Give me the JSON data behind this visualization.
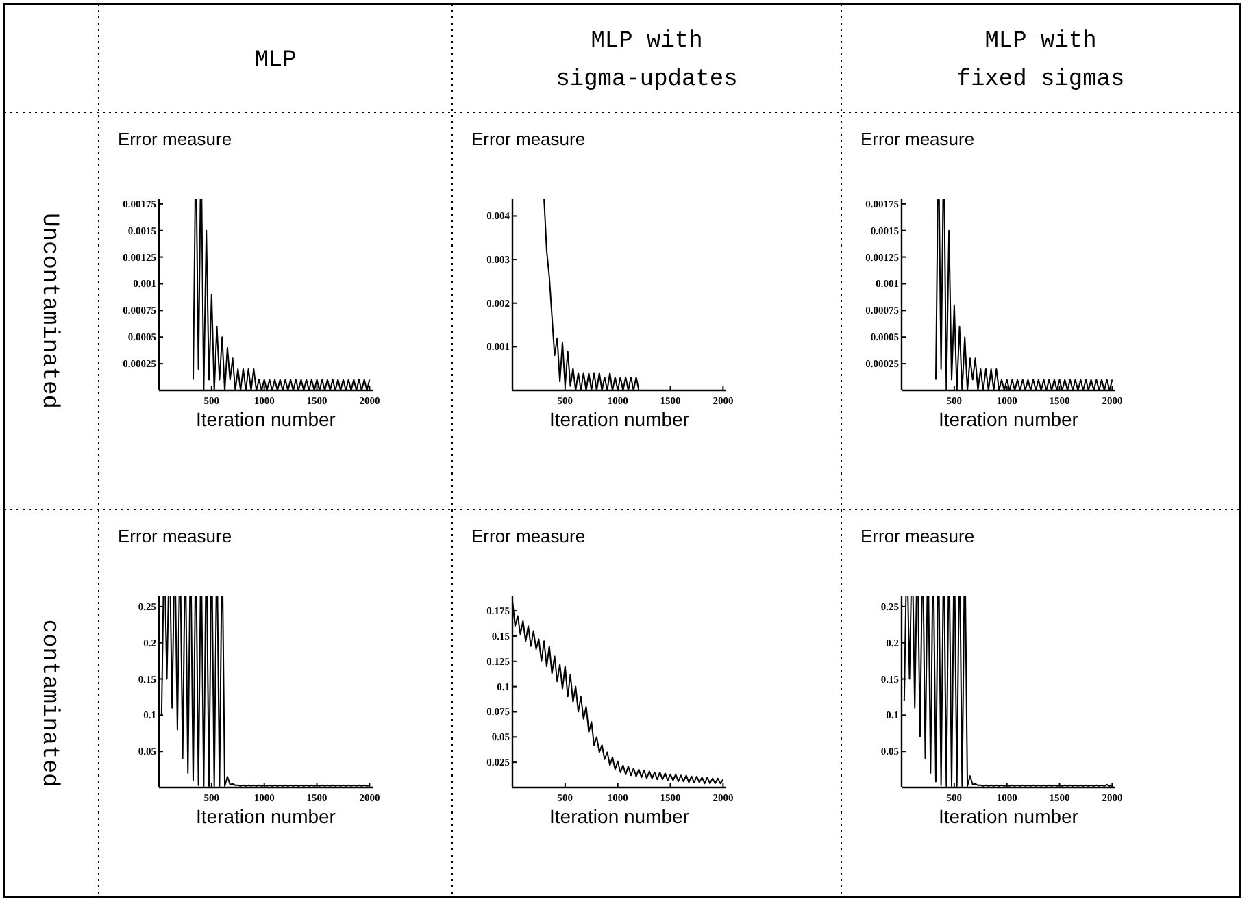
{
  "chart_data": [
    {
      "type": "line",
      "ylabel": "Error measure",
      "xlabel": "Iteration number",
      "xlim": [
        0,
        2030
      ],
      "ylim": [
        0,
        0.0018
      ],
      "xticks": [
        500,
        1000,
        1500,
        2000
      ],
      "yticks": [
        0.00025,
        0.0005,
        0.00075,
        0.001,
        0.00125,
        0.0015,
        0.00175
      ],
      "series": [
        {
          "color": "#000000",
          "x": [
            325,
            350,
            375,
            400,
            425,
            450,
            475,
            500,
            525,
            550,
            575,
            600,
            625,
            650,
            675,
            700,
            725,
            750,
            775,
            800,
            825,
            850,
            875,
            900,
            925,
            950,
            975,
            1000,
            1025,
            1050,
            1075,
            1100,
            1125,
            1150,
            1175,
            1200,
            1225,
            1250,
            1275,
            1300,
            1325,
            1350,
            1375,
            1400,
            1425,
            1450,
            1475,
            1500,
            1525,
            1550,
            1575,
            1600,
            1625,
            1650,
            1675,
            1700,
            1725,
            1750,
            1775,
            1800,
            1825,
            1850,
            1875,
            1900,
            1925,
            1950,
            1975,
            2000
          ],
          "values": [
            0.0001,
            null,
            0.0002,
            null,
            0,
            0.0015,
            0.0001,
            0.0009,
            0,
            0.0006,
            0.0001,
            0.0005,
            0,
            0.0004,
            0.0001,
            0.0003,
            0,
            0.0002,
            0,
            0.0002,
            0,
            0.0002,
            0,
            0.0002,
            0,
            0.0001,
            0,
            0.0001,
            0,
            0.0001,
            0,
            0.0001,
            0,
            0.0001,
            0,
            0.0001,
            0,
            0.0001,
            0,
            0.0001,
            0,
            0.0001,
            0,
            0.0001,
            0,
            0.0001,
            0,
            0.0001,
            0,
            0.0001,
            0,
            0.0001,
            0,
            0.0001,
            0,
            0.0001,
            0,
            0.0001,
            0,
            0.0001,
            0,
            0.0001,
            0,
            0.0001,
            0,
            0.0001,
            0,
            0.0001
          ]
        }
      ]
    },
    {
      "type": "line",
      "ylabel": "Error measure",
      "xlabel": "Iteration number",
      "xlim": [
        0,
        2030
      ],
      "ylim": [
        0,
        0.0044
      ],
      "xticks": [
        500,
        1000,
        1500,
        2000
      ],
      "yticks": [
        0.001,
        0.002,
        0.003,
        0.004
      ],
      "series": [
        {
          "color": "#000000",
          "x": [
            300,
            325,
            350,
            375,
            400,
            425,
            450,
            475,
            500,
            525,
            550,
            575,
            600,
            625,
            650,
            675,
            700,
            725,
            750,
            775,
            800,
            825,
            850,
            875,
            900,
            925,
            950,
            975,
            1000,
            1025,
            1050,
            1075,
            1100,
            1125,
            1150,
            1175,
            1200,
            1225,
            1250,
            1275,
            1300,
            1325,
            1350,
            1375,
            1400,
            1425,
            1450,
            1475,
            1500,
            1525,
            1550,
            1575,
            1600,
            1625,
            1650,
            1675,
            1700,
            1725,
            1750,
            1775,
            1800,
            1825,
            1850,
            1875,
            1900,
            1925,
            1950,
            1975,
            2000
          ],
          "values": [
            0.0044,
            0.0032,
            0.0026,
            0.0017,
            0.0008,
            0.0012,
            0.0002,
            0.0011,
            0.0001,
            0.0009,
            0.0001,
            0.0005,
            0,
            0.0004,
            0,
            0.0004,
            0,
            0.0004,
            0,
            0.0004,
            0,
            0.0004,
            0,
            0.0003,
            0,
            0.0004,
            0,
            0.0003,
            0,
            0.0003,
            0,
            0.0003,
            0,
            0.0003,
            0,
            0.0003,
            0,
            0,
            0,
            0,
            0,
            0,
            0,
            0,
            0,
            0,
            0,
            0,
            0,
            0,
            0,
            0,
            0,
            0,
            0,
            0,
            0,
            0,
            0,
            0,
            0,
            0,
            0,
            0,
            0,
            0,
            0,
            0,
            0
          ]
        }
      ]
    },
    {
      "type": "line",
      "ylabel": "Error measure",
      "xlabel": "Iteration number",
      "xlim": [
        0,
        2030
      ],
      "ylim": [
        0,
        0.0018
      ],
      "xticks": [
        500,
        1000,
        1500,
        2000
      ],
      "yticks": [
        0.00025,
        0.0005,
        0.00075,
        0.001,
        0.00125,
        0.0015,
        0.00175
      ],
      "series": [
        {
          "color": "#000000",
          "x": [
            325,
            350,
            375,
            400,
            425,
            450,
            475,
            500,
            525,
            550,
            575,
            600,
            625,
            650,
            675,
            700,
            725,
            750,
            775,
            800,
            825,
            850,
            875,
            900,
            925,
            950,
            975,
            1000,
            1025,
            1050,
            1075,
            1100,
            1125,
            1150,
            1175,
            1200,
            1225,
            1250,
            1275,
            1300,
            1325,
            1350,
            1375,
            1400,
            1425,
            1450,
            1475,
            1500,
            1525,
            1550,
            1575,
            1600,
            1625,
            1650,
            1675,
            1700,
            1725,
            1750,
            1775,
            1800,
            1825,
            1850,
            1875,
            1900,
            1925,
            1950,
            1975,
            2000
          ],
          "values": [
            0.0001,
            null,
            0.0002,
            null,
            0,
            0.0015,
            0.0001,
            0.0008,
            0,
            0.0006,
            0,
            0.0005,
            0,
            0.0003,
            0.0001,
            0.0003,
            0,
            0.0002,
            0,
            0.0002,
            0,
            0.0002,
            0,
            0.0002,
            0,
            0.0001,
            0,
            0.0001,
            0,
            0.0001,
            0,
            0.0001,
            0,
            0.0001,
            0,
            0.0001,
            0,
            0.0001,
            0,
            0.0001,
            0,
            0.0001,
            0,
            0.0001,
            0,
            0.0001,
            0,
            0.0001,
            0,
            0.0001,
            0,
            0.0001,
            0,
            0.0001,
            0,
            0.0001,
            0,
            0.0001,
            0,
            0.0001,
            0,
            0.0001,
            0,
            0.0001,
            0,
            0.0001,
            0,
            0.0001
          ]
        }
      ]
    },
    {
      "type": "line",
      "ylabel": "Error measure",
      "xlabel": "Iteration number",
      "xlim": [
        0,
        2030
      ],
      "ylim": [
        0,
        0.265
      ],
      "xticks": [
        500,
        1000,
        1500,
        2000
      ],
      "yticks": [
        0.05,
        0.1,
        0.15,
        0.2,
        0.25
      ],
      "series": [
        {
          "color": "#000000",
          "x": [
            25,
            50,
            75,
            100,
            125,
            150,
            175,
            200,
            225,
            250,
            275,
            300,
            325,
            350,
            375,
            400,
            425,
            450,
            475,
            500,
            525,
            550,
            575,
            600,
            625,
            650,
            675,
            700,
            725,
            750,
            775,
            800,
            825,
            850,
            875,
            900,
            925,
            950,
            975,
            1000,
            1025,
            1050,
            1075,
            1100,
            1125,
            1150,
            1175,
            1200,
            1225,
            1250,
            1275,
            1300,
            1325,
            1350,
            1375,
            1400,
            1425,
            1450,
            1475,
            1500,
            1525,
            1550,
            1575,
            1600,
            1625,
            1650,
            1675,
            1700,
            1725,
            1750,
            1775,
            1800,
            1825,
            1850,
            1875,
            1900,
            1925,
            1950,
            1975,
            2000
          ],
          "values": [
            0.1,
            null,
            0.15,
            null,
            0.11,
            null,
            0.08,
            null,
            0.04,
            null,
            0.02,
            null,
            0.01,
            null,
            0.003,
            null,
            0.002,
            null,
            0.002,
            null,
            0.002,
            null,
            0.002,
            null,
            0.002,
            0.015,
            0.004,
            0.005,
            0.003,
            0.003,
            0.002,
            0.003,
            0.002,
            0.003,
            0.002,
            0.003,
            0.002,
            0.003,
            0.002,
            0.003,
            0.002,
            0.003,
            0.002,
            0.003,
            0.002,
            0.003,
            0.002,
            0.003,
            0.002,
            0.003,
            0.002,
            0.003,
            0.002,
            0.003,
            0.002,
            0.003,
            0.002,
            0.003,
            0.002,
            0.003,
            0.002,
            0.003,
            0.002,
            0.003,
            0.002,
            0.003,
            0.002,
            0.003,
            0.002,
            0.003,
            0.002,
            0.003,
            0.002,
            0.003,
            0.002,
            0.003,
            0.002,
            0.003,
            0.002,
            0.003
          ]
        }
      ]
    },
    {
      "type": "line",
      "ylabel": "Error measure",
      "xlabel": "Iteration number",
      "xlim": [
        0,
        2030
      ],
      "ylim": [
        0,
        0.19
      ],
      "xticks": [
        500,
        1000,
        1500,
        2000
      ],
      "yticks": [
        0.025,
        0.05,
        0.075,
        0.1,
        0.125,
        0.15,
        0.175
      ],
      "series": [
        {
          "color": "#000000",
          "x": [
            0,
            25,
            50,
            75,
            100,
            125,
            150,
            175,
            200,
            225,
            250,
            275,
            300,
            325,
            350,
            375,
            400,
            425,
            450,
            475,
            500,
            525,
            550,
            575,
            600,
            625,
            650,
            675,
            700,
            725,
            750,
            775,
            800,
            825,
            850,
            875,
            900,
            925,
            950,
            975,
            1000,
            1025,
            1050,
            1075,
            1100,
            1125,
            1150,
            1175,
            1200,
            1225,
            1250,
            1275,
            1300,
            1325,
            1350,
            1375,
            1400,
            1425,
            1450,
            1475,
            1500,
            1525,
            1550,
            1575,
            1600,
            1625,
            1650,
            1675,
            1700,
            1725,
            1750,
            1775,
            1800,
            1825,
            1850,
            1875,
            1900,
            1925,
            1950,
            1975,
            2000
          ],
          "values": [
            0.185,
            0.16,
            0.17,
            0.152,
            0.165,
            0.145,
            0.16,
            0.14,
            0.155,
            0.137,
            0.147,
            0.125,
            0.145,
            0.12,
            0.14,
            0.113,
            0.13,
            0.105,
            0.122,
            0.098,
            0.12,
            0.09,
            0.112,
            0.085,
            0.1,
            0.075,
            0.09,
            0.068,
            0.08,
            0.055,
            0.065,
            0.042,
            0.05,
            0.035,
            0.042,
            0.028,
            0.035,
            0.022,
            0.03,
            0.018,
            0.026,
            0.015,
            0.022,
            0.013,
            0.021,
            0.012,
            0.019,
            0.011,
            0.018,
            0.01,
            0.017,
            0.009,
            0.016,
            0.009,
            0.015,
            0.008,
            0.015,
            0.008,
            0.014,
            0.007,
            0.013,
            0.007,
            0.013,
            0.006,
            0.012,
            0.006,
            0.012,
            0.005,
            0.011,
            0.005,
            0.011,
            0.005,
            0.01,
            0.004,
            0.01,
            0.004,
            0.009,
            0.004,
            0.009,
            0.004,
            0.008
          ]
        }
      ]
    },
    {
      "type": "line",
      "ylabel": "Error measure",
      "xlabel": "Iteration number",
      "xlim": [
        0,
        2030
      ],
      "ylim": [
        0,
        0.265
      ],
      "xticks": [
        500,
        1000,
        1500,
        2000
      ],
      "yticks": [
        0.05,
        0.1,
        0.15,
        0.2,
        0.25
      ],
      "series": [
        {
          "color": "#000000",
          "x": [
            25,
            50,
            75,
            100,
            125,
            150,
            175,
            200,
            225,
            250,
            275,
            300,
            325,
            350,
            375,
            400,
            425,
            450,
            475,
            500,
            525,
            550,
            575,
            600,
            625,
            650,
            675,
            700,
            725,
            750,
            775,
            800,
            825,
            850,
            875,
            900,
            925,
            950,
            975,
            1000,
            1025,
            1050,
            1075,
            1100,
            1125,
            1150,
            1175,
            1200,
            1225,
            1250,
            1275,
            1300,
            1325,
            1350,
            1375,
            1400,
            1425,
            1450,
            1475,
            1500,
            1525,
            1550,
            1575,
            1600,
            1625,
            1650,
            1675,
            1700,
            1725,
            1750,
            1775,
            1800,
            1825,
            1850,
            1875,
            1900,
            1925,
            1950,
            1975,
            2000
          ],
          "values": [
            0.12,
            null,
            0.15,
            null,
            0.11,
            null,
            0.07,
            null,
            0.04,
            null,
            0.02,
            null,
            0.008,
            null,
            0.003,
            null,
            0.002,
            null,
            0.002,
            null,
            0.002,
            null,
            0.002,
            null,
            0.002,
            0.016,
            0.004,
            0.005,
            0.003,
            0.003,
            0.002,
            0.003,
            0.002,
            0.003,
            0.002,
            0.003,
            0.002,
            0.003,
            0.002,
            0.003,
            0.002,
            0.003,
            0.002,
            0.003,
            0.002,
            0.003,
            0.002,
            0.003,
            0.002,
            0.003,
            0.002,
            0.003,
            0.002,
            0.003,
            0.002,
            0.003,
            0.002,
            0.003,
            0.002,
            0.003,
            0.002,
            0.003,
            0.002,
            0.003,
            0.002,
            0.003,
            0.002,
            0.003,
            0.002,
            0.003,
            0.002,
            0.003,
            0.002,
            0.003,
            0.002,
            0.003,
            0.002,
            0.004,
            0.002,
            0.003
          ]
        }
      ]
    },
    {
      "type": "other",
      "annotations": [
        "MLP",
        "MLP with sigma-updates",
        "MLP with fixed sigmas",
        "Uncontaminated",
        "contaminated"
      ]
    }
  ]
}
